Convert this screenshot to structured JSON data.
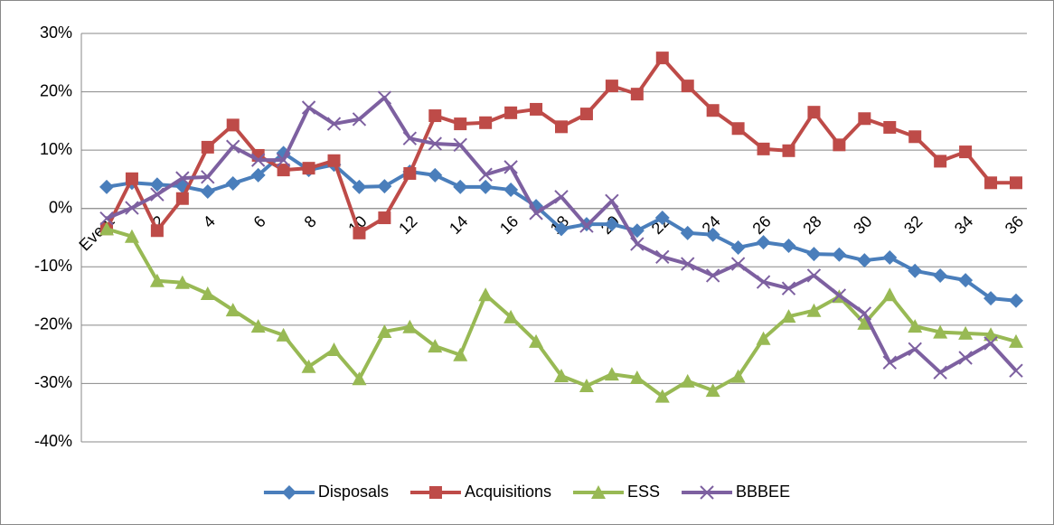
{
  "chart_data": {
    "type": "line",
    "categories": [
      "Event",
      null,
      "2",
      null,
      "4",
      null,
      "6",
      null,
      "8",
      null,
      "10",
      null,
      "12",
      null,
      "14",
      null,
      "16",
      null,
      "18",
      null,
      "20",
      null,
      "22",
      null,
      "24",
      null,
      "26",
      null,
      "28",
      null,
      "30",
      null,
      "32",
      null,
      "34",
      null,
      "36"
    ],
    "series": [
      {
        "name": "Disposals",
        "color": "#4a7ebb",
        "marker": "diamond",
        "values": [
          3.7,
          4.4,
          4.1,
          3.8,
          2.9,
          4.3,
          5.7,
          9.5,
          6.6,
          7.5,
          3.7,
          3.8,
          6.3,
          5.7,
          3.7,
          3.7,
          3.2,
          0.4,
          -3.5,
          -2.7,
          -2.7,
          -3.8,
          -1.6,
          -4.2,
          -4.5,
          -6.7,
          -5.8,
          -6.4,
          -7.8,
          -7.9,
          -8.9,
          -8.4,
          -10.7,
          -11.5,
          -12.3,
          -15.4,
          -15.8
        ]
      },
      {
        "name": "Acquisitions",
        "color": "#be4b48",
        "marker": "square",
        "values": [
          -3.5,
          5.1,
          -3.8,
          1.7,
          10.5,
          14.3,
          9.1,
          6.6,
          6.9,
          8.2,
          -4.2,
          -1.6,
          6.0,
          15.9,
          14.5,
          14.7,
          16.4,
          17.0,
          14.0,
          16.2,
          21.0,
          19.6,
          25.8,
          21.0,
          16.8,
          13.7,
          10.2,
          9.9,
          16.5,
          10.9,
          15.4,
          13.9,
          12.3,
          8.1,
          9.7,
          4.4,
          4.4
        ]
      },
      {
        "name": "ESS",
        "color": "#98b954",
        "marker": "triangle",
        "values": [
          -3.5,
          -4.8,
          -12.4,
          -12.7,
          -14.6,
          -17.4,
          -20.2,
          -21.7,
          -27.1,
          -24.2,
          -29.2,
          -21.1,
          -20.3,
          -23.6,
          -25.1,
          -14.8,
          -18.6,
          -22.8,
          -28.7,
          -30.4,
          -28.4,
          -29.0,
          -32.2,
          -29.6,
          -31.2,
          -28.8,
          -22.3,
          -18.5,
          -17.5,
          -15.1,
          -19.7,
          -14.8,
          -20.2,
          -21.2,
          -21.4,
          -21.6,
          -22.8
        ]
      },
      {
        "name": "BBBEE",
        "color": "#7d60a0",
        "marker": "x",
        "values": [
          -1.7,
          0.1,
          2.4,
          5.2,
          5.4,
          10.6,
          8.3,
          8.3,
          17.3,
          14.5,
          15.3,
          19.0,
          12.0,
          11.1,
          10.9,
          5.8,
          7.1,
          -0.8,
          2.0,
          -3.0,
          1.3,
          -6.1,
          -8.3,
          -9.5,
          -11.5,
          -9.5,
          -12.6,
          -13.7,
          -11.5,
          -14.9,
          -18.0,
          -26.4,
          -24.1,
          -28.1,
          -25.6,
          -23.1,
          -27.8
        ]
      }
    ],
    "ylim": [
      -40,
      30
    ],
    "yticks": [
      {
        "value": -40,
        "label": "-40%"
      },
      {
        "value": -30,
        "label": "-30%"
      },
      {
        "value": -20,
        "label": "-20%"
      },
      {
        "value": -10,
        "label": "-10%"
      },
      {
        "value": 0,
        "label": "0%"
      },
      {
        "value": 10,
        "label": "10%"
      },
      {
        "value": 20,
        "label": "20%"
      },
      {
        "value": 30,
        "label": "30%"
      }
    ],
    "grid": true,
    "legend": "bottom"
  }
}
